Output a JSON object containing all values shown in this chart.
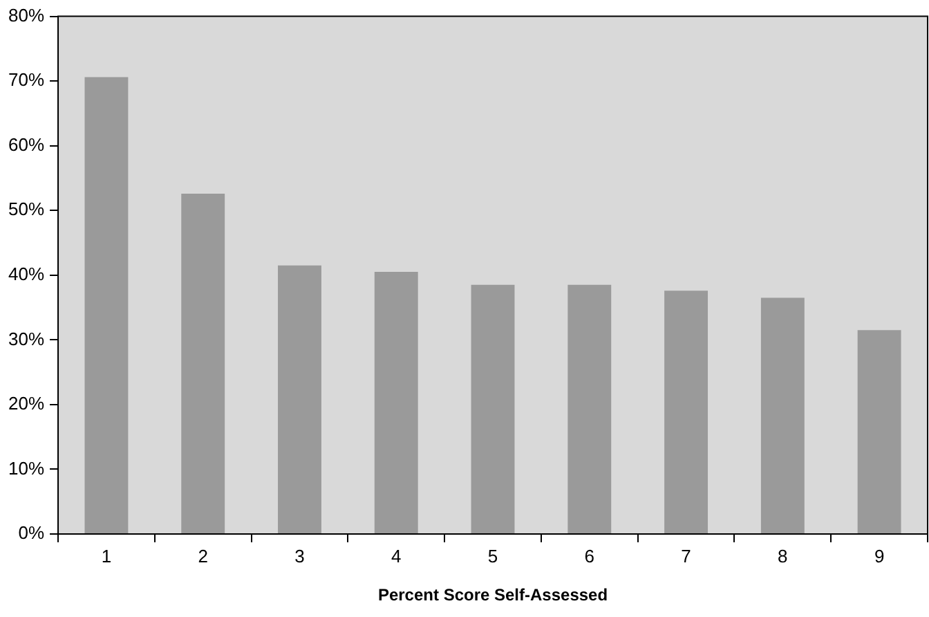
{
  "chart_data": {
    "type": "bar",
    "xlabel": "Percent Score Self-Assessed",
    "categories": [
      "1",
      "2",
      "3",
      "4",
      "5",
      "6",
      "7",
      "8",
      "9"
    ],
    "values": [
      70.6,
      52.6,
      41.5,
      40.5,
      38.5,
      38.5,
      37.6,
      36.5,
      31.5
    ],
    "color": "#9a9a9a",
    "ylim": [
      0,
      80
    ],
    "yticks": [
      {
        "value": 0,
        "label": "0%"
      },
      {
        "value": 10,
        "label": "10%"
      },
      {
        "value": 20,
        "label": "20%"
      },
      {
        "value": 30,
        "label": "30%"
      },
      {
        "value": 40,
        "label": "40%"
      },
      {
        "value": 50,
        "label": "50%"
      },
      {
        "value": 60,
        "label": "60%"
      },
      {
        "value": 70,
        "label": "70%"
      },
      {
        "value": 80,
        "label": "80%"
      }
    ],
    "grid": false,
    "legend": false
  }
}
